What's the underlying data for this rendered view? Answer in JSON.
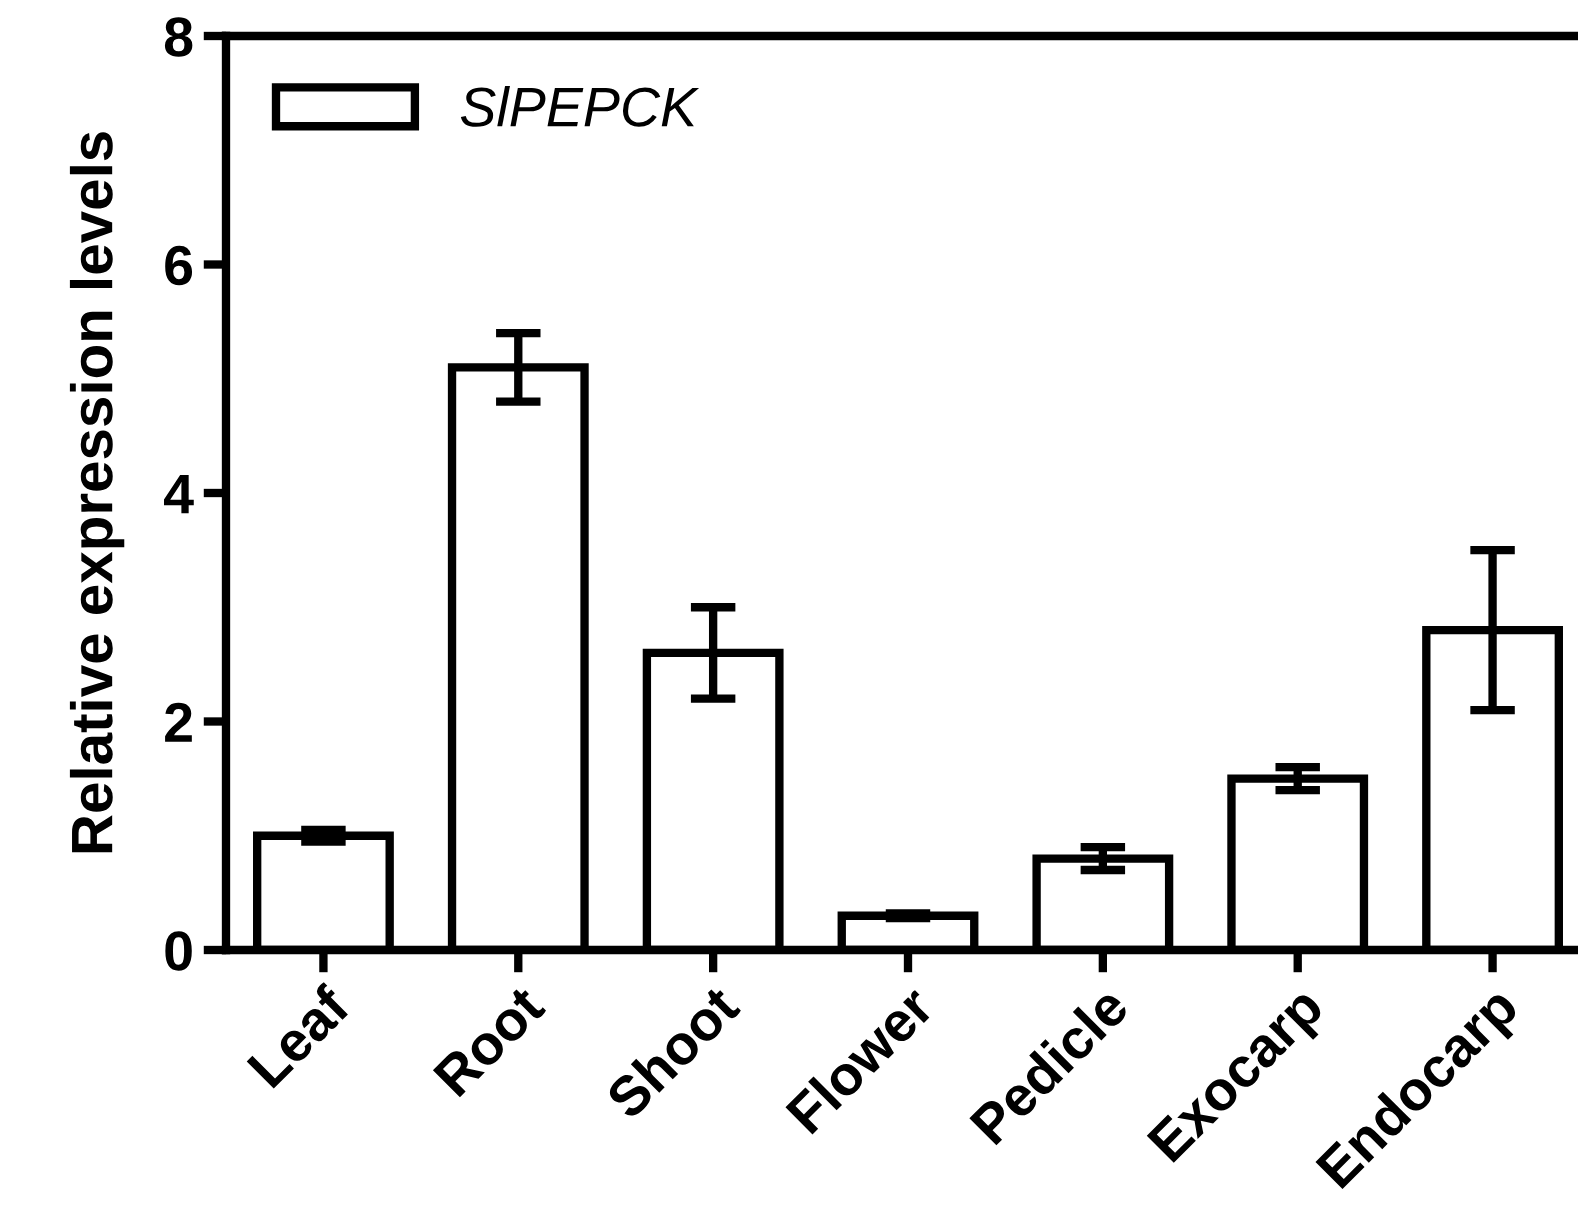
{
  "chart_data": {
    "type": "bar",
    "ylabel": "Relative expression levels",
    "categories": [
      "Leaf",
      "Root",
      "Shoot",
      "Flower",
      "Pedicle",
      "Exocarp",
      "Endocarp"
    ],
    "series": [
      {
        "name": "SlPEPCK",
        "color": "#ffffff",
        "values": [
          1.0,
          5.1,
          2.6,
          0.3,
          0.8,
          1.5,
          2.8
        ],
        "errors": [
          0.05,
          0.3,
          0.4,
          0.02,
          0.1,
          0.1,
          0.7
        ]
      }
    ],
    "ylim": [
      0,
      8
    ],
    "yticks": [
      0,
      2,
      4,
      6,
      8
    ],
    "grid": false,
    "legend": "top left"
  }
}
